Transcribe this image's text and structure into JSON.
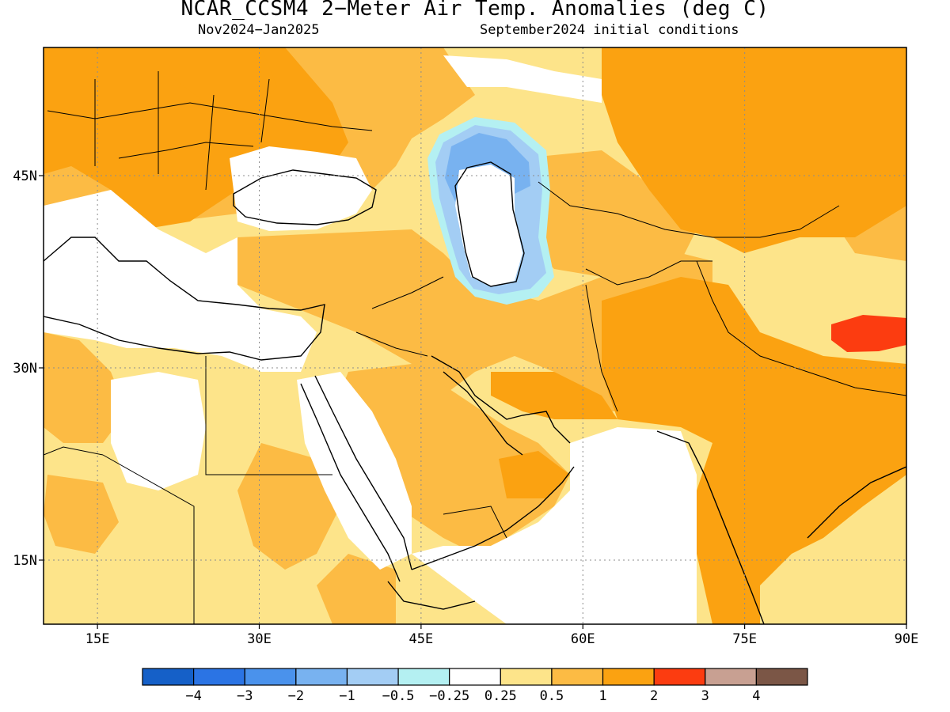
{
  "title": "NCAR_CCSM4 2−Meter Air Temp. Anomalies (deg C)",
  "subtitle_left": "Nov2024−Jan2025",
  "subtitle_right": "September2024 initial conditions",
  "map": {
    "lon_range": [
      10,
      90
    ],
    "lat_range": [
      10,
      55
    ],
    "lon_ticks": [
      "15E",
      "30E",
      "45E",
      "60E",
      "75E",
      "90E"
    ],
    "lat_ticks": [
      "45N",
      "30N",
      "15N"
    ],
    "gridlines": "dotted"
  },
  "legend": {
    "colors": [
      "#1560c8",
      "#2b74e4",
      "#4a92ec",
      "#78b2f0",
      "#a3cdf4",
      "#b4f0f2",
      "#ffffff",
      "#fde48a",
      "#fcbb44",
      "#fba211",
      "#fc3c10",
      "#c8a092",
      "#7b5646"
    ],
    "labels": [
      "−4",
      "−3",
      "−2",
      "−1",
      "−0.5",
      "−0.25",
      "0.25",
      "0.5",
      "1",
      "2",
      "3",
      "4"
    ]
  },
  "colors": {
    "frame": "#000000",
    "grid": "#8c8c8c",
    "neutral": "#ffffff",
    "warm_light": "#fde48a",
    "warm_mid": "#fcbb44",
    "warm_strong": "#fba211",
    "hot": "#fc3c10",
    "cool_light": "#b4f0f2",
    "cool_mid": "#a3cdf4",
    "cool_strong": "#78b2f0"
  }
}
